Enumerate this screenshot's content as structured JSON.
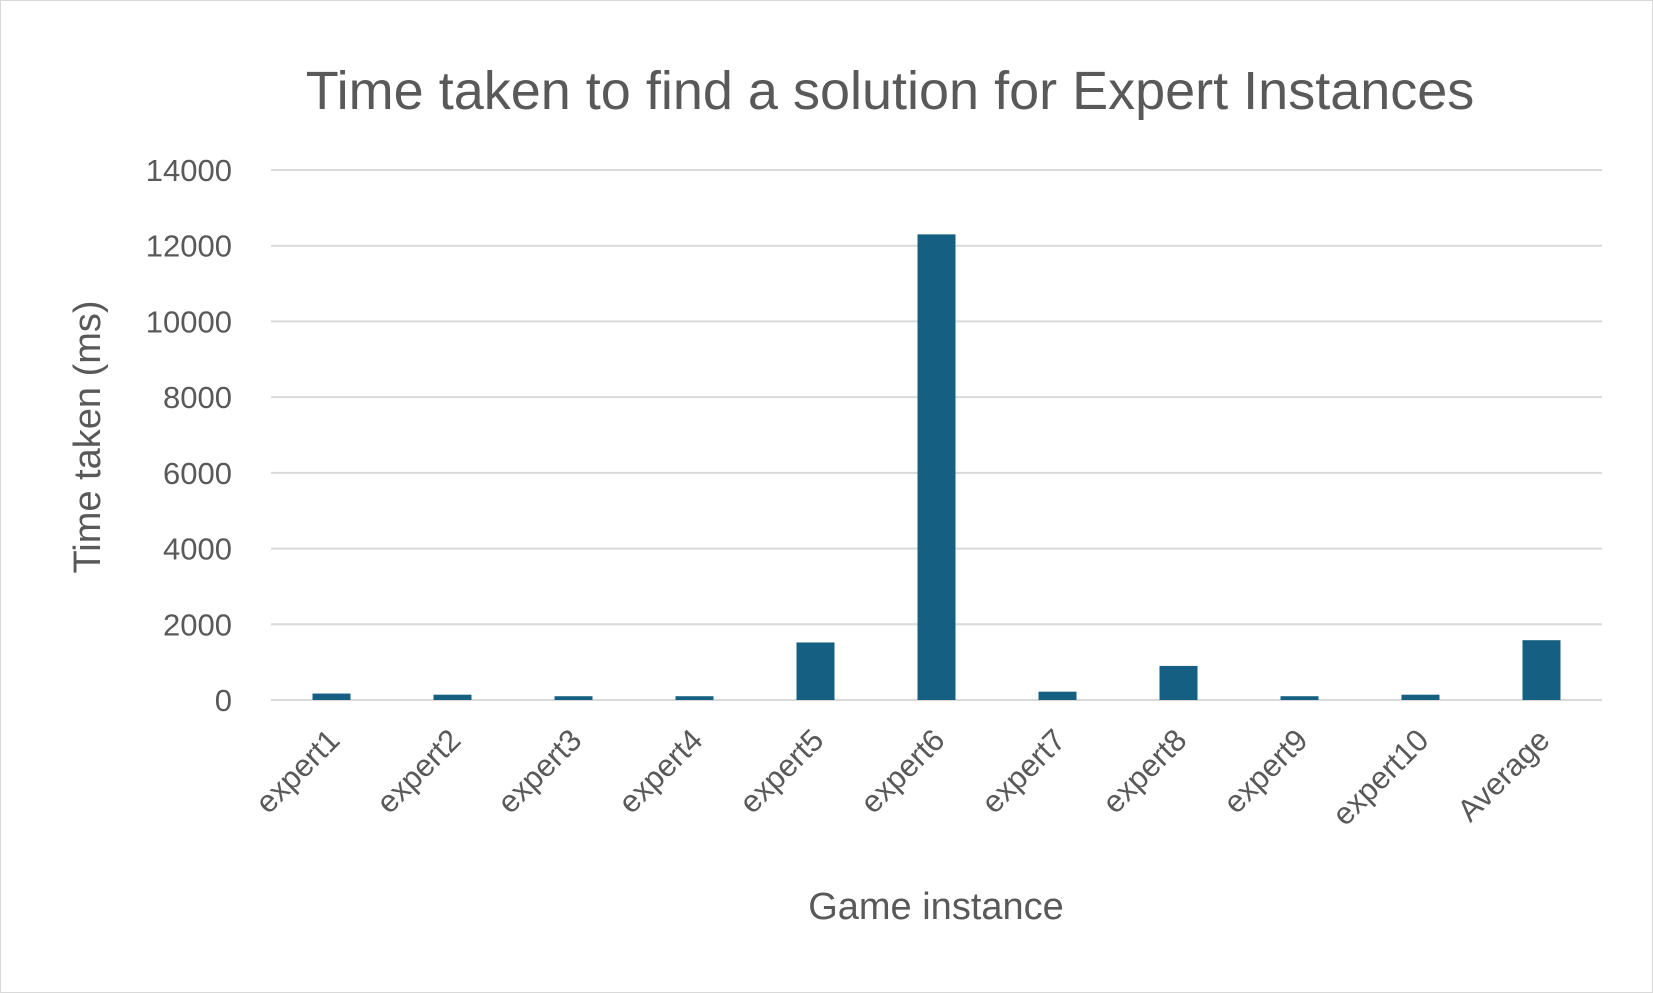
{
  "chart_data": {
    "type": "bar",
    "title": "Time taken to find a solution for Expert Instances",
    "xlabel": "Game instance",
    "ylabel": "Time taken (ms)",
    "ylim": [
      0,
      14000
    ],
    "yticks": [
      0,
      2000,
      4000,
      6000,
      8000,
      10000,
      12000,
      14000
    ],
    "ytick_labels": [
      "0",
      "2000",
      "4000",
      "6000",
      "8000",
      "10000",
      "12000",
      "14000"
    ],
    "categories": [
      "expert1",
      "expert2",
      "expert3",
      "expert4",
      "expert5",
      "expert6",
      "expert7",
      "expert8",
      "expert9",
      "expert10",
      "Average"
    ],
    "values": [
      170,
      140,
      100,
      100,
      1520,
      12300,
      220,
      900,
      100,
      140,
      1580
    ],
    "grid": true,
    "legend": "none",
    "bar_color": "#156082"
  }
}
